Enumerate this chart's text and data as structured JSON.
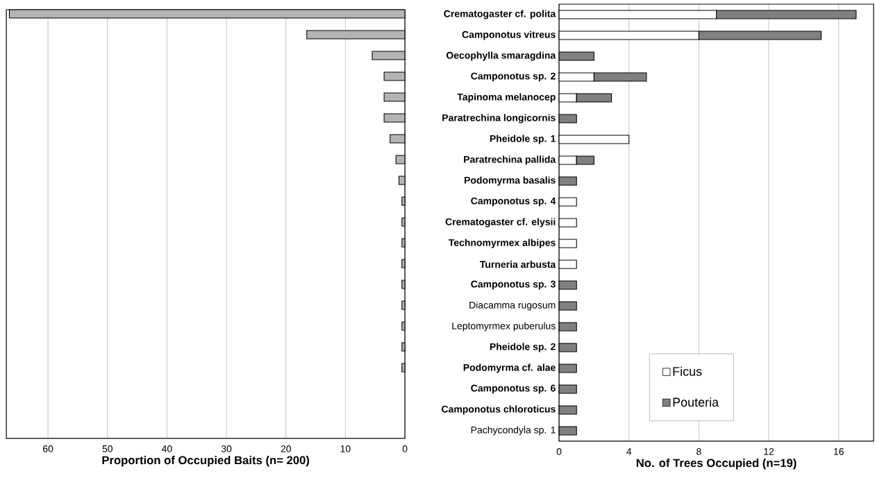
{
  "chart_data": [
    {
      "type": "bar",
      "orientation": "horizontal",
      "xlabel": "Proportion of  Occupied Baits  (n= 200)",
      "categories": [
        null,
        null,
        null,
        null,
        null,
        null,
        null,
        null,
        null,
        null,
        null,
        null,
        null,
        null,
        null,
        null,
        null,
        null,
        null,
        null,
        null
      ],
      "values": [
        66.5,
        16.5,
        5.5,
        3.5,
        3.5,
        3.5,
        2.5,
        1.5,
        1,
        0.5,
        0.5,
        0.5,
        0.5,
        0.5,
        0.5,
        0.5,
        0.5,
        0.5,
        null,
        null,
        null
      ],
      "color": "#b4b4b4",
      "xlim": [
        67,
        0
      ],
      "xticks": [
        0,
        10,
        20,
        30,
        40,
        50,
        60
      ],
      "grid": "x",
      "tick_labels": "x"
    },
    {
      "type": "bar",
      "orientation": "horizontal",
      "stacked": true,
      "xlabel": "No. of Trees Occupied (n=19)",
      "categories": [
        "**Crematogaster cf. polita**",
        "**Camponotus vitreus**",
        "**Oecophylla smaragdina**",
        "**Camponotus sp. 2**",
        "**Tapinoma melanocep**",
        "**Paratrechina longicornis**",
        "**Pheidole sp. 1**",
        "**Paratrechina pallida**",
        "**Podomyrma basalis**",
        "**Camponotus sp. 4**",
        "**Crematogaster cf. elysii**",
        "**Technomyrmex albipes**",
        "**Turneria arbusta**",
        "**Camponotus sp. 3**",
        "Diacamma rugosum",
        "Leptomyrmex puberulus",
        "**Pheidole sp. 2**",
        "**Podomyrma cf. alae**",
        "**Camponotus sp. 6**",
        "**Camponotus chloroticus**",
        "Pachycondyla sp. 1"
      ],
      "series": [
        {
          "name": "Ficus",
          "color": "#ffffff",
          "values": [
            9,
            8,
            null,
            2,
            1,
            null,
            4,
            1,
            null,
            1,
            1,
            1,
            1,
            null,
            null,
            null,
            null,
            null,
            null,
            null,
            null
          ]
        },
        {
          "name": "Pouteria",
          "color": "#808080",
          "values": [
            8,
            7,
            2,
            3,
            2,
            1,
            null,
            1,
            1,
            null,
            null,
            null,
            null,
            1,
            1,
            1,
            1,
            1,
            1,
            1,
            1
          ]
        }
      ],
      "xlim": [
        0,
        18
      ],
      "xticks": [
        0,
        4,
        8,
        12,
        16
      ],
      "grid": "x",
      "legend": "bottom"
    }
  ]
}
